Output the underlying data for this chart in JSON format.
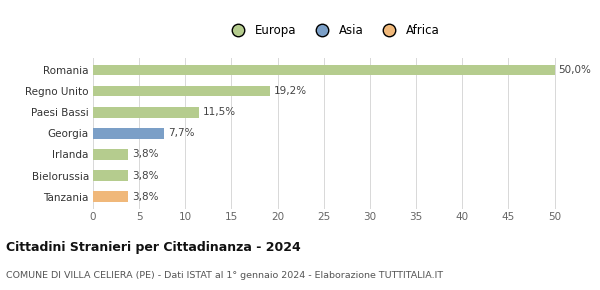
{
  "categories": [
    "Tanzania",
    "Bielorussia",
    "Irlanda",
    "Georgia",
    "Paesi Bassi",
    "Regno Unito",
    "Romania"
  ],
  "values": [
    3.8,
    3.8,
    3.8,
    7.7,
    11.5,
    19.2,
    50.0
  ],
  "labels": [
    "3,8%",
    "3,8%",
    "3,8%",
    "7,7%",
    "11,5%",
    "19,2%",
    "50,0%"
  ],
  "colors": [
    "#f0b87a",
    "#b5cc8e",
    "#b5cc8e",
    "#7b9fc7",
    "#b5cc8e",
    "#b5cc8e",
    "#b5cc8e"
  ],
  "legend_labels": [
    "Europa",
    "Asia",
    "Africa"
  ],
  "legend_colors": [
    "#b5cc8e",
    "#7b9fc7",
    "#f0b87a"
  ],
  "xlim": [
    0,
    52
  ],
  "xticks": [
    0,
    5,
    10,
    15,
    20,
    25,
    30,
    35,
    40,
    45,
    50
  ],
  "title": "Cittadini Stranieri per Cittadinanza - 2024",
  "subtitle": "COMUNE DI VILLA CELIERA (PE) - Dati ISTAT al 1° gennaio 2024 - Elaborazione TUTTITALIA.IT",
  "bg_color": "#ffffff",
  "grid_color": "#d8d8d8",
  "bar_height": 0.5
}
